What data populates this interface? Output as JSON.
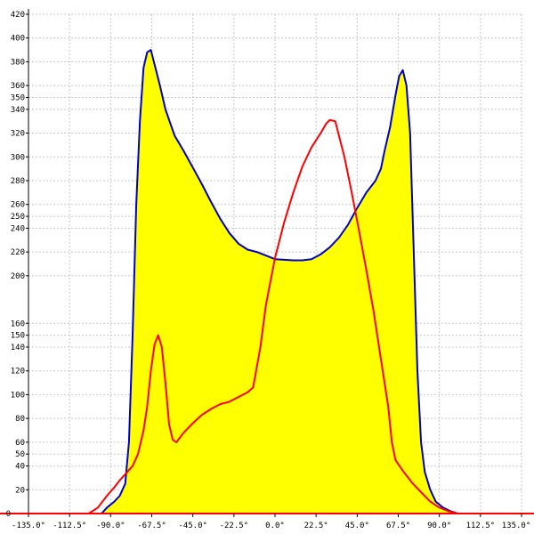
{
  "chart_data": {
    "type": "area",
    "title": "",
    "xlabel": "",
    "ylabel": "",
    "xlim": [
      -135,
      135
    ],
    "ylim": [
      0,
      420
    ],
    "grid": true,
    "x_ticks": [
      -135,
      -112.5,
      -90,
      -67.5,
      -45,
      -22.5,
      0,
      22.5,
      45,
      67.5,
      90,
      112.5,
      135
    ],
    "x_tick_labels": [
      "-135.0°",
      "-112.5°",
      "-90.0°",
      "-67.5°",
      "-45.0°",
      "-22.5°",
      "0.0°",
      "22.5°",
      "45.0°",
      "67.5°",
      "90.0°",
      "112.5°",
      "135.0°"
    ],
    "y_ticks": [
      20,
      40,
      50,
      60,
      80,
      100,
      120,
      140,
      150,
      160,
      200,
      220,
      240,
      250,
      260,
      280,
      300,
      320,
      340,
      350,
      360,
      380,
      400,
      420
    ],
    "y_tick_labels": [
      "20",
      "40",
      "50",
      "60",
      "80",
      "100",
      "120",
      "140",
      "150",
      "160",
      "200",
      "220",
      "240",
      "250",
      "260",
      "280",
      "300",
      "320",
      "340",
      "350",
      "360",
      "380",
      "400",
      "420"
    ],
    "series": [
      {
        "color": "#0000cc",
        "fill": "#ffff00",
        "points": [
          [
            -100,
            0
          ],
          [
            -95,
            0
          ],
          [
            -92,
            5
          ],
          [
            -88,
            10
          ],
          [
            -85,
            15
          ],
          [
            -82,
            25
          ],
          [
            -80,
            60
          ],
          [
            -78,
            150
          ],
          [
            -76,
            260
          ],
          [
            -74,
            330
          ],
          [
            -72,
            375
          ],
          [
            -70,
            388
          ],
          [
            -68,
            390
          ],
          [
            -66,
            378
          ],
          [
            -63,
            360
          ],
          [
            -60,
            340
          ],
          [
            -55,
            318
          ],
          [
            -50,
            305
          ],
          [
            -45,
            291
          ],
          [
            -40,
            277
          ],
          [
            -35,
            262
          ],
          [
            -30,
            248
          ],
          [
            -25,
            236
          ],
          [
            -20,
            227
          ],
          [
            -15,
            222
          ],
          [
            -10,
            220
          ],
          [
            -5,
            217
          ],
          [
            0,
            214
          ],
          [
            10,
            213
          ],
          [
            15,
            213
          ],
          [
            20,
            214
          ],
          [
            25,
            218
          ],
          [
            30,
            224
          ],
          [
            35,
            232
          ],
          [
            40,
            243
          ],
          [
            45,
            257
          ],
          [
            50,
            270
          ],
          [
            55,
            280
          ],
          [
            58,
            290
          ],
          [
            60,
            305
          ],
          [
            63,
            325
          ],
          [
            66,
            352
          ],
          [
            68,
            368
          ],
          [
            70,
            373
          ],
          [
            72,
            360
          ],
          [
            74,
            320
          ],
          [
            76,
            220
          ],
          [
            78,
            120
          ],
          [
            80,
            60
          ],
          [
            82,
            35
          ],
          [
            85,
            20
          ],
          [
            88,
            10
          ],
          [
            92,
            5
          ],
          [
            96,
            2
          ],
          [
            100,
            0
          ],
          [
            105,
            0
          ]
        ]
      },
      {
        "color": "#ff0000",
        "fill": "none",
        "points": [
          [
            -102,
            0
          ],
          [
            -97,
            5
          ],
          [
            -92,
            15
          ],
          [
            -88,
            22
          ],
          [
            -85,
            28
          ],
          [
            -82,
            33
          ],
          [
            -78,
            40
          ],
          [
            -75,
            50
          ],
          [
            -72,
            70
          ],
          [
            -70,
            90
          ],
          [
            -68,
            120
          ],
          [
            -66,
            142
          ],
          [
            -64,
            150
          ],
          [
            -62,
            140
          ],
          [
            -60,
            110
          ],
          [
            -58,
            75
          ],
          [
            -56,
            62
          ],
          [
            -54,
            60
          ],
          [
            -50,
            68
          ],
          [
            -45,
            76
          ],
          [
            -40,
            83
          ],
          [
            -35,
            88
          ],
          [
            -30,
            92
          ],
          [
            -25,
            94
          ],
          [
            -20,
            98
          ],
          [
            -15,
            102
          ],
          [
            -12,
            106
          ],
          [
            -8,
            140
          ],
          [
            -5,
            175
          ],
          [
            0,
            215
          ],
          [
            5,
            245
          ],
          [
            10,
            270
          ],
          [
            15,
            292
          ],
          [
            20,
            308
          ],
          [
            25,
            320
          ],
          [
            28,
            328
          ],
          [
            30,
            331
          ],
          [
            33,
            330
          ],
          [
            35,
            318
          ],
          [
            38,
            300
          ],
          [
            42,
            270
          ],
          [
            46,
            238
          ],
          [
            50,
            205
          ],
          [
            54,
            170
          ],
          [
            58,
            130
          ],
          [
            62,
            90
          ],
          [
            64,
            60
          ],
          [
            66,
            45
          ],
          [
            70,
            36
          ],
          [
            75,
            26
          ],
          [
            80,
            18
          ],
          [
            85,
            10
          ],
          [
            90,
            5
          ],
          [
            95,
            2
          ],
          [
            100,
            0
          ],
          [
            135,
            0
          ]
        ]
      }
    ],
    "baseline_color": "#ff0000"
  }
}
